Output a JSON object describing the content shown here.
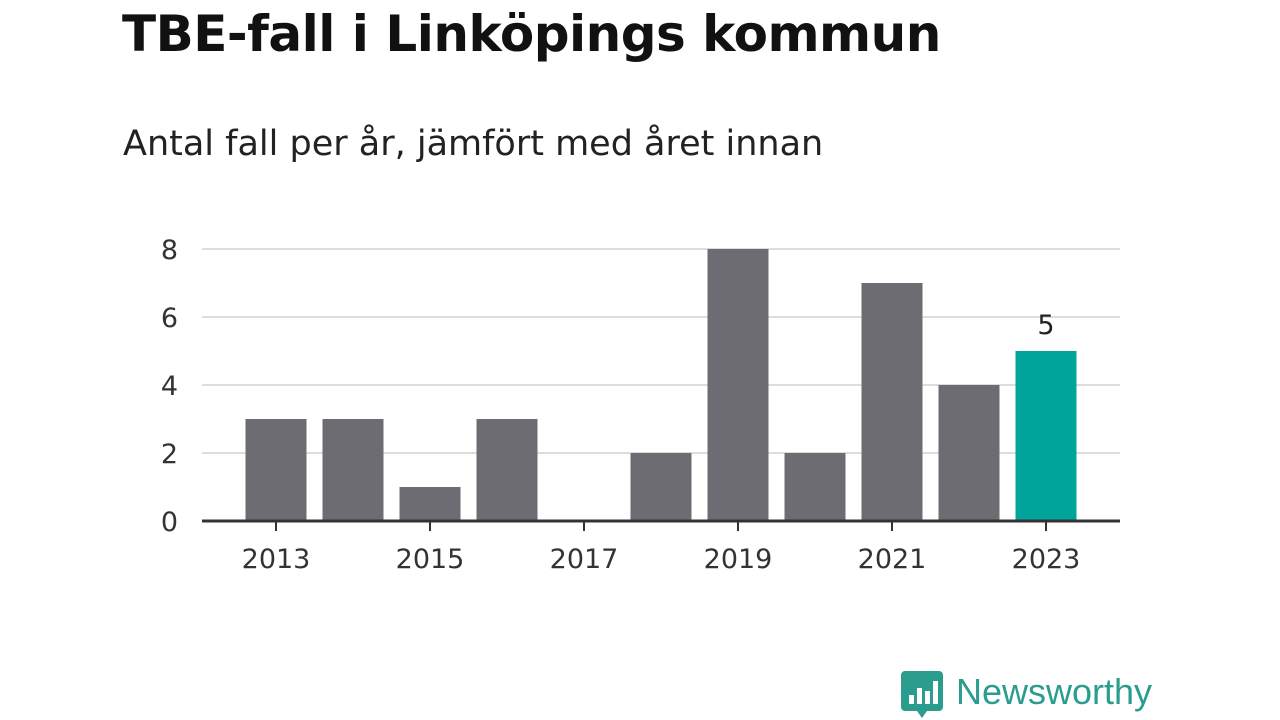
{
  "header": {
    "title": "TBE-fall i Linköpings kommun",
    "subtitle": "Antal fall per år, jämfört med året innan"
  },
  "branding": {
    "name": "Newsworthy",
    "icon": "bar-chart-speech-bubble-icon",
    "color": "#2a9d8f"
  },
  "chart_data": {
    "type": "bar",
    "title": "",
    "xlabel": "",
    "ylabel": "",
    "categories": [
      2013,
      2014,
      2015,
      2016,
      2017,
      2018,
      2019,
      2020,
      2021,
      2022,
      2023
    ],
    "values": [
      3,
      3,
      1,
      3,
      0,
      2,
      8,
      2,
      7,
      4,
      5
    ],
    "x_tick_labels": [
      "2013",
      "2015",
      "2017",
      "2019",
      "2021",
      "2023"
    ],
    "y_ticks": [
      0,
      2,
      4,
      6,
      8
    ],
    "ylim": [
      0,
      8
    ],
    "grid": true,
    "highlight": {
      "category": 2023,
      "label": "5"
    },
    "colors": {
      "bar": "#6d6c72",
      "highlight": "#00a49a",
      "grid": "#dddddd",
      "axis": "#333333"
    }
  }
}
